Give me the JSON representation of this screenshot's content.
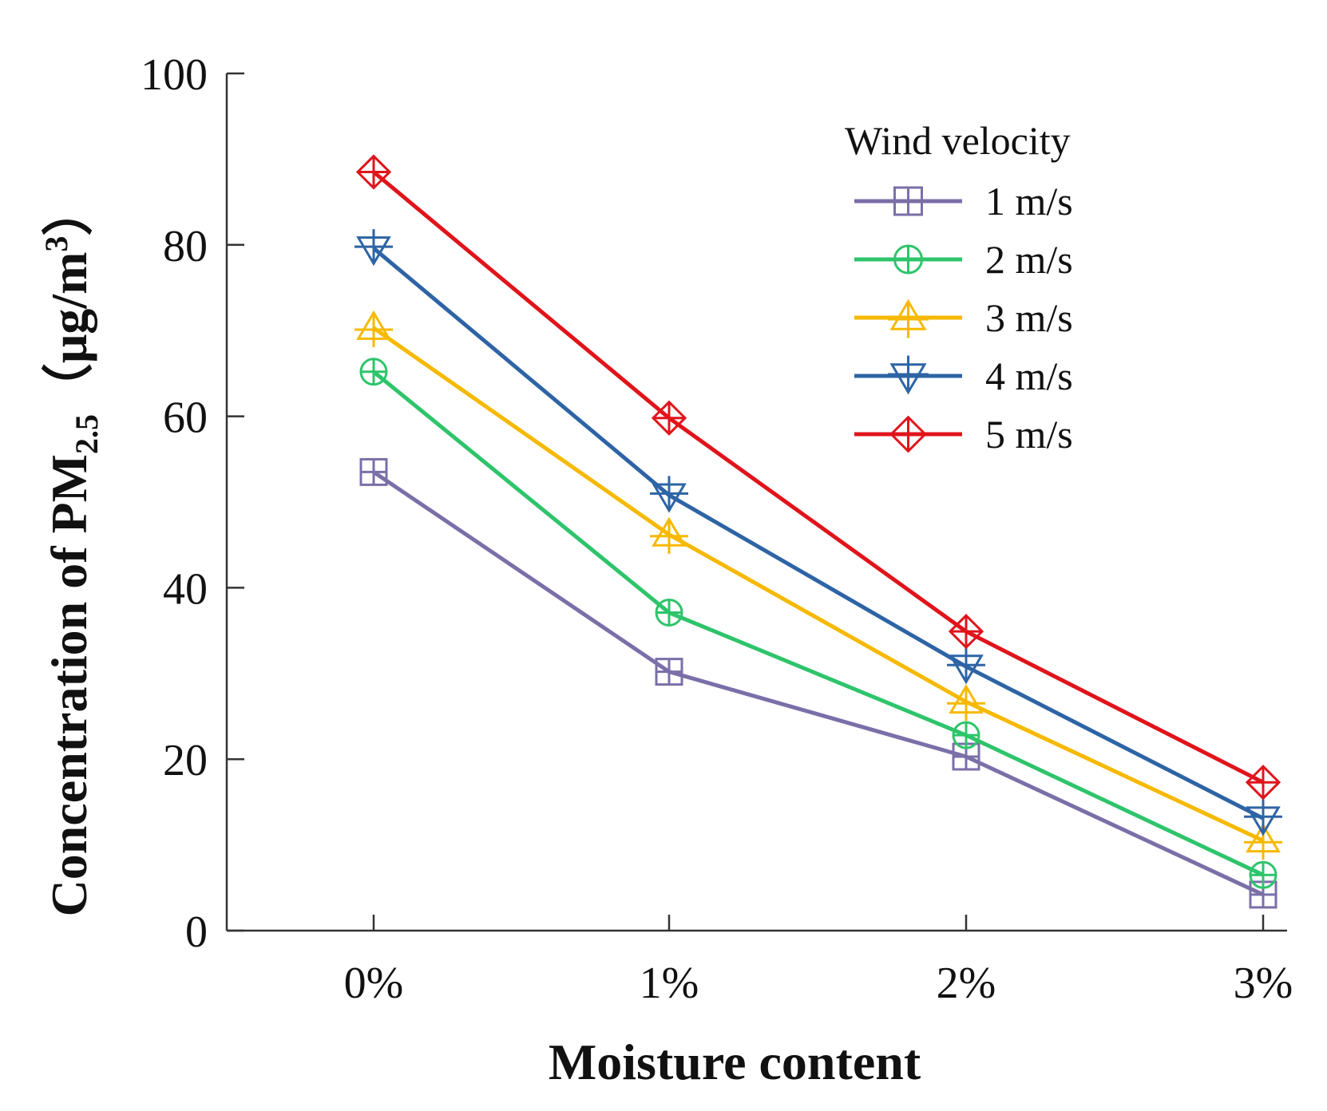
{
  "chart_data": {
    "type": "line",
    "title": "",
    "xlabel": "Moisture content",
    "ylabel": {
      "prefix": "Concentration of PM",
      "subscript": "2.5",
      "unit_open": "（μg/m",
      "unit_sup": "3",
      "unit_close": "）"
    },
    "categories": [
      "0%",
      "1%",
      "2%",
      "3%"
    ],
    "ylim": [
      0,
      100
    ],
    "yticks": [
      0,
      20,
      40,
      60,
      80,
      100
    ],
    "legend": {
      "title": "Wind velocity",
      "placement": "top-right"
    },
    "series": [
      {
        "name": "1 m/s",
        "color": "#7b6fa8",
        "marker": "square-plus",
        "values": [
          53.5,
          30.2,
          20.3,
          4.2
        ]
      },
      {
        "name": "2 m/s",
        "color": "#2ec46b",
        "marker": "circle-plus",
        "values": [
          65.2,
          37.1,
          22.8,
          6.5
        ]
      },
      {
        "name": "3 m/s",
        "color": "#f6b900",
        "marker": "triangle-up-plus",
        "values": [
          70.3,
          46.2,
          26.7,
          10.5
        ]
      },
      {
        "name": "4 m/s",
        "color": "#2e64a5",
        "marker": "triangle-down-plus",
        "values": [
          79.6,
          50.8,
          30.8,
          13.1
        ]
      },
      {
        "name": "5 m/s",
        "color": "#e0141b",
        "marker": "diamond-plus",
        "values": [
          88.5,
          59.8,
          34.9,
          17.3
        ]
      }
    ]
  }
}
